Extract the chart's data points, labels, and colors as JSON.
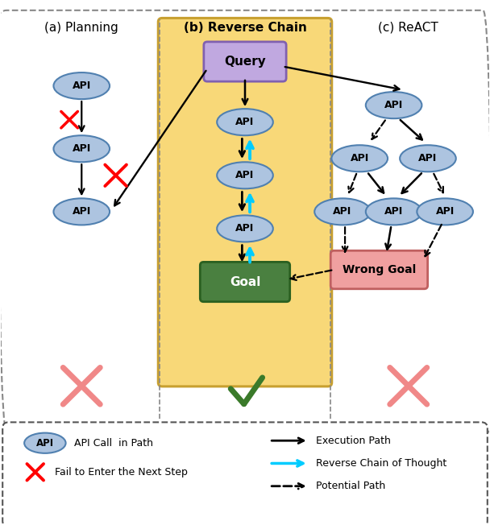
{
  "fig_width": 6.08,
  "fig_height": 6.52,
  "bg_color": "#ffffff",
  "api_ellipse_color": "#adc4e0",
  "api_ellipse_edge": "#5080b0",
  "query_box_color": "#c0a8e0",
  "query_box_edge": "#8060b0",
  "goal_box_color": "#4a8040",
  "goal_box_edge": "#2a6020",
  "wrong_goal_color": "#f0a0a0",
  "wrong_goal_edge": "#c06060",
  "highlight_bg": "#f8d878",
  "highlight_edge": "#c8a030",
  "section_a_title": "(a) Planning",
  "section_b_title": "(b) Reverse Chain",
  "section_c_title": "(c) ReACT",
  "legend_items": [
    "API Call  in Path",
    "Fail to Enter the Next Step",
    "Execution Path",
    "Reverse Chain of Thought",
    "Potential Path"
  ]
}
